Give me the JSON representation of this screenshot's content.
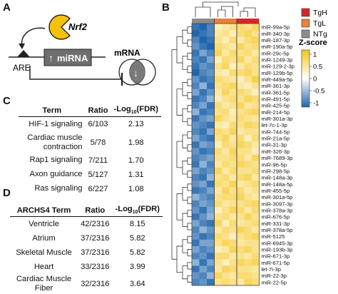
{
  "panels": {
    "a": "A",
    "b": "B",
    "c": "C",
    "d": "D"
  },
  "panel_a": {
    "nrf2": "Nrf2",
    "are": "ARE",
    "mirna": "miRNA",
    "mrna": "mRNA",
    "up_arrow": "↑",
    "down_arrow": "↓"
  },
  "table_c": {
    "headers": {
      "term": "Term",
      "ratio": "Ratio",
      "fdr_prefix": "-Log",
      "fdr_sub": "10",
      "fdr_suffix": "(FDR)"
    },
    "rows": [
      {
        "term": "HIF-1 signaling",
        "ratio": "6/103",
        "fdr": "2.13"
      },
      {
        "term": "Cardiac muscle contraction",
        "ratio": "5/78",
        "fdr": "1.98"
      },
      {
        "term": "Rap1 signaling",
        "ratio": "7/211",
        "fdr": "1.70"
      },
      {
        "term": "Axon guidance",
        "ratio": "5/127",
        "fdr": "1.31"
      },
      {
        "term": "Ras signaling",
        "ratio": "6/227",
        "fdr": "1.08"
      }
    ]
  },
  "table_d": {
    "headers": {
      "term": "ARCHS4 Term",
      "ratio": "Ratio",
      "fdr_prefix": "-Log",
      "fdr_sub": "10",
      "fdr_suffix": "(FDR)"
    },
    "rows": [
      {
        "term": "Ventricle",
        "ratio": "42/2316",
        "fdr": "8.15"
      },
      {
        "term": "Atrium",
        "ratio": "37/2316",
        "fdr": "5.82"
      },
      {
        "term": "Skeletal Muscle",
        "ratio": "37/2316",
        "fdr": "5.82"
      },
      {
        "term": "Heart",
        "ratio": "33/2316",
        "fdr": "3.99"
      },
      {
        "term": "Cardiac Muscle Fiber",
        "ratio": "32/2316",
        "fdr": "3.64"
      }
    ]
  },
  "legend": {
    "groups": [
      {
        "label": "TgH",
        "color": "#d7262b"
      },
      {
        "label": "TgL",
        "color": "#e8823a"
      },
      {
        "label": "NTg",
        "color": "#8c8c8c"
      }
    ],
    "zscore_title": "Z-score",
    "zscore_ticks": [
      "1",
      "0.5",
      "0",
      "-0.5",
      "-1"
    ]
  },
  "chart_data": {
    "type": "heatmap",
    "group_colors": {
      "TgH": "#d7262b",
      "TgL": "#e8823a",
      "NTg": "#8c8c8c"
    },
    "column_groups": [
      "NTg",
      "NTg",
      "NTg",
      "TgL",
      "TgL",
      "TgL",
      "TgH",
      "TgH",
      "TgH"
    ],
    "colormap": {
      "low": "#2166ac",
      "mid": "#ffffff",
      "high": "#f5c518"
    },
    "zlim": [
      -1,
      1
    ],
    "rows": [
      "miR-99a-5p",
      "miR-340-3p",
      "miR-187-3p",
      "miR-190a-5p",
      "miR-29c-5p",
      "miR-1249-3p",
      "miR-129-2-3p",
      "miR-129b-5p",
      "miR-449a-5p",
      "miR-361-3p",
      "miR-361-5p",
      "miR-491-5p",
      "miR-425-5p",
      "miR-214-5p",
      "miR-301a-3p",
      "let-7c-1-3p",
      "miR-744-5p",
      "miR-21a-5p",
      "miR-31-3p",
      "miR-326-3p",
      "miR-7689-3p",
      "miR-96-5p",
      "miR-298-5p",
      "miR-148a-3p",
      "miR-148a-5p",
      "miR-455-5p",
      "miR-301a-5p",
      "miR-3097-3p",
      "miR-378a-3p",
      "miR-676-5p",
      "miR-331-3p",
      "miR-378a-5p",
      "miR-5125",
      "miR-6945-3p",
      "miR-193b-3p",
      "miR-671-3p",
      "miR-671-5p",
      "let-7i-3p",
      "miR-22-3p",
      "miR-22-5p"
    ],
    "values": [
      [
        -0.9,
        -1,
        -0.8,
        0.3,
        0.4,
        0.5,
        0.6,
        0.5,
        0.7
      ],
      [
        -1,
        -0.9,
        -0.8,
        0.4,
        0.5,
        0.3,
        0.6,
        0.7,
        0.5
      ],
      [
        -0.8,
        -1,
        -0.9,
        0.5,
        0.3,
        0.6,
        0.4,
        0.6,
        0.7
      ],
      [
        -0.7,
        -0.9,
        -1,
        0.6,
        0.5,
        0.4,
        0.7,
        0.5,
        0.6
      ],
      [
        -0.9,
        -0.6,
        -0.8,
        0.7,
        0.4,
        0.6,
        0.5,
        0.6,
        0.4
      ],
      [
        -0.8,
        -0.9,
        -0.6,
        0.3,
        0.6,
        0.5,
        0.7,
        0.4,
        0.6
      ],
      [
        -0.9,
        -0.7,
        -0.8,
        0.5,
        0.7,
        0.3,
        0.4,
        0.6,
        0.5
      ],
      [
        -1,
        -0.8,
        -0.7,
        0.4,
        0.3,
        0.6,
        0.6,
        0.7,
        0.5
      ],
      [
        -0.7,
        -0.9,
        -0.8,
        0.6,
        0.5,
        0.4,
        0.3,
        0.5,
        0.8
      ],
      [
        -0.8,
        -0.5,
        -0.9,
        0.5,
        0.6,
        0.7,
        0.4,
        0.3,
        0.5
      ],
      [
        -0.6,
        -0.9,
        -0.7,
        0.4,
        0.7,
        0.5,
        0.6,
        0.5,
        0.3
      ],
      [
        -0.9,
        -0.8,
        -0.5,
        0.3,
        0.5,
        0.6,
        0.5,
        0.7,
        0.6
      ],
      [
        -0.8,
        -0.6,
        -0.9,
        0.6,
        0.4,
        0.5,
        0.7,
        0.4,
        0.5
      ],
      [
        -0.5,
        -0.9,
        -0.8,
        0.5,
        0.6,
        0.3,
        0.5,
        0.6,
        0.7
      ],
      [
        -0.9,
        -0.7,
        -0.6,
        0.7,
        0.5,
        0.4,
        0.6,
        0.5,
        0.4
      ],
      [
        -0.7,
        -0.8,
        -0.9,
        0.4,
        0.3,
        0.6,
        0.5,
        0.7,
        0.6
      ],
      [
        -0.8,
        -0.9,
        -0.6,
        0.6,
        0.5,
        0.7,
        0.4,
        0.5,
        0.5
      ],
      [
        -0.6,
        -0.8,
        -0.9,
        0.5,
        0.7,
        0.4,
        0.6,
        0.3,
        0.6
      ],
      [
        -0.9,
        -0.6,
        -0.7,
        0.3,
        0.6,
        0.5,
        0.7,
        0.6,
        0.4
      ],
      [
        -0.7,
        -0.9,
        -0.8,
        0.6,
        0.4,
        0.7,
        0.5,
        0.5,
        0.3
      ],
      [
        -0.8,
        -0.7,
        -0.6,
        0.5,
        0.5,
        0.6,
        0.6,
        0.4,
        0.7
      ],
      [
        -0.9,
        -0.5,
        -0.8,
        0.4,
        0.6,
        0.5,
        0.7,
        0.6,
        0.5
      ],
      [
        -0.6,
        -0.8,
        -0.7,
        0.7,
        0.4,
        0.6,
        0.5,
        0.5,
        0.6
      ],
      [
        -0.8,
        -0.9,
        -0.5,
        0.5,
        0.6,
        0.4,
        0.6,
        0.7,
        0.4
      ],
      [
        -0.7,
        -0.6,
        -0.9,
        0.6,
        0.5,
        0.7,
        0.4,
        0.5,
        0.6
      ],
      [
        -0.9,
        -0.8,
        -0.6,
        0.4,
        0.7,
        0.5,
        0.6,
        0.4,
        0.5
      ],
      [
        -0.5,
        -0.7,
        -0.8,
        0.5,
        0.6,
        0.6,
        0.7,
        0.5,
        0.4
      ],
      [
        -0.8,
        -0.6,
        -0.7,
        0.6,
        0.4,
        0.5,
        0.5,
        0.6,
        0.7
      ],
      [
        -0.7,
        -0.9,
        -0.6,
        0.3,
        0.5,
        0.7,
        0.6,
        0.4,
        0.6
      ],
      [
        -0.9,
        -0.7,
        -0.5,
        0.5,
        0.6,
        0.4,
        0.5,
        0.7,
        0.5
      ],
      [
        -0.6,
        -0.8,
        -0.9,
        0.7,
        0.3,
        0.6,
        0.4,
        0.5,
        0.6
      ],
      [
        -0.8,
        -0.5,
        -0.7,
        0.4,
        0.6,
        0.5,
        0.7,
        0.6,
        0.4
      ],
      [
        -0.7,
        -0.9,
        -0.8,
        0.6,
        0.5,
        0.3,
        0.5,
        0.6,
        0.7
      ],
      [
        -0.9,
        -0.6,
        -0.6,
        0.5,
        0.7,
        0.6,
        0.4,
        0.5,
        0.5
      ],
      [
        -0.6,
        -0.8,
        -0.7,
        0.3,
        0.4,
        0.7,
        0.6,
        0.7,
        0.5
      ],
      [
        -0.8,
        -0.7,
        -0.9,
        0.6,
        0.6,
        0.4,
        0.5,
        0.4,
        0.6
      ],
      [
        -0.5,
        -0.9,
        -0.6,
        0.5,
        0.3,
        0.5,
        0.7,
        0.6,
        0.7
      ],
      [
        -0.9,
        -0.6,
        -0.8,
        0.4,
        0.7,
        0.6,
        0.5,
        0.5,
        0.4
      ],
      [
        -0.7,
        -0.8,
        -0.5,
        0.7,
        0.5,
        0.4,
        0.6,
        0.6,
        0.5
      ],
      [
        -0.8,
        -0.7,
        -0.9,
        0.5,
        0.6,
        0.5,
        0.4,
        0.7,
        0.6
      ]
    ]
  }
}
